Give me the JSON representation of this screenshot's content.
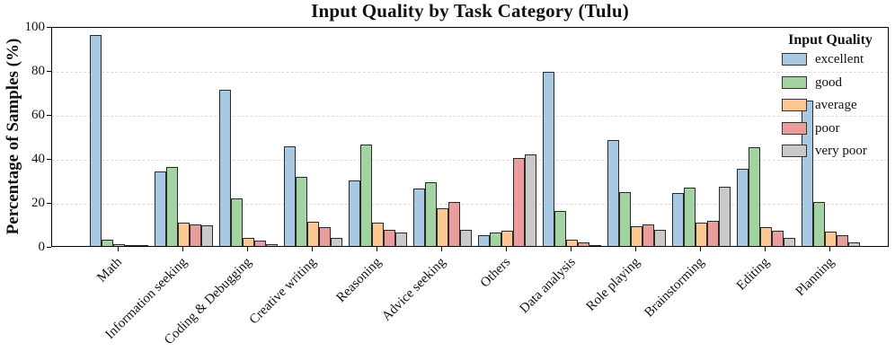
{
  "chart_data": {
    "type": "bar",
    "title": "Input Quality by Task Category (Tulu)",
    "xlabel": "",
    "ylabel": "Percentage of Samples (%)",
    "ylim": [
      0,
      100
    ],
    "yticks": [
      0,
      20,
      40,
      60,
      80,
      100
    ],
    "grid": "horizontal-dashed",
    "grid_color": "#dcdcdc",
    "bar_edge_color": "#2a2a2a",
    "legend": {
      "title": "Input Quality",
      "position": "upper-right",
      "frame": false
    },
    "categories": [
      "Math",
      "Information seeking",
      "Coding & Debugging",
      "Creative writing",
      "Reasoning",
      "Advice seeking",
      "Others",
      "Data analysis",
      "Role playing",
      "Brainstorming",
      "Editing",
      "Planning"
    ],
    "series": [
      {
        "name": "excellent",
        "color": "#a8c9e2",
        "values": [
          96,
          34,
          71,
          45.5,
          30,
          26,
          5,
          79,
          48,
          24,
          35,
          66
        ]
      },
      {
        "name": "good",
        "color": "#a4d3a2",
        "values": [
          3,
          36,
          21.5,
          31.5,
          46,
          29,
          6.3,
          16,
          24.5,
          26.5,
          45,
          20
        ]
      },
      {
        "name": "average",
        "color": "#fdc794",
        "values": [
          1,
          10.5,
          3.5,
          11,
          10.5,
          17,
          6.8,
          3,
          9,
          10.5,
          8.5,
          6.6
        ]
      },
      {
        "name": "poor",
        "color": "#eb9c9d",
        "values": [
          0.4,
          10,
          2.4,
          8.5,
          7.5,
          20,
          40,
          1.6,
          10,
          11.5,
          7,
          5
        ]
      },
      {
        "name": "very poor",
        "color": "#c9c9c9",
        "values": [
          0.2,
          9.3,
          1,
          3.5,
          6,
          7.5,
          41.5,
          0.6,
          7.4,
          27,
          3.6,
          1.8
        ]
      }
    ]
  }
}
